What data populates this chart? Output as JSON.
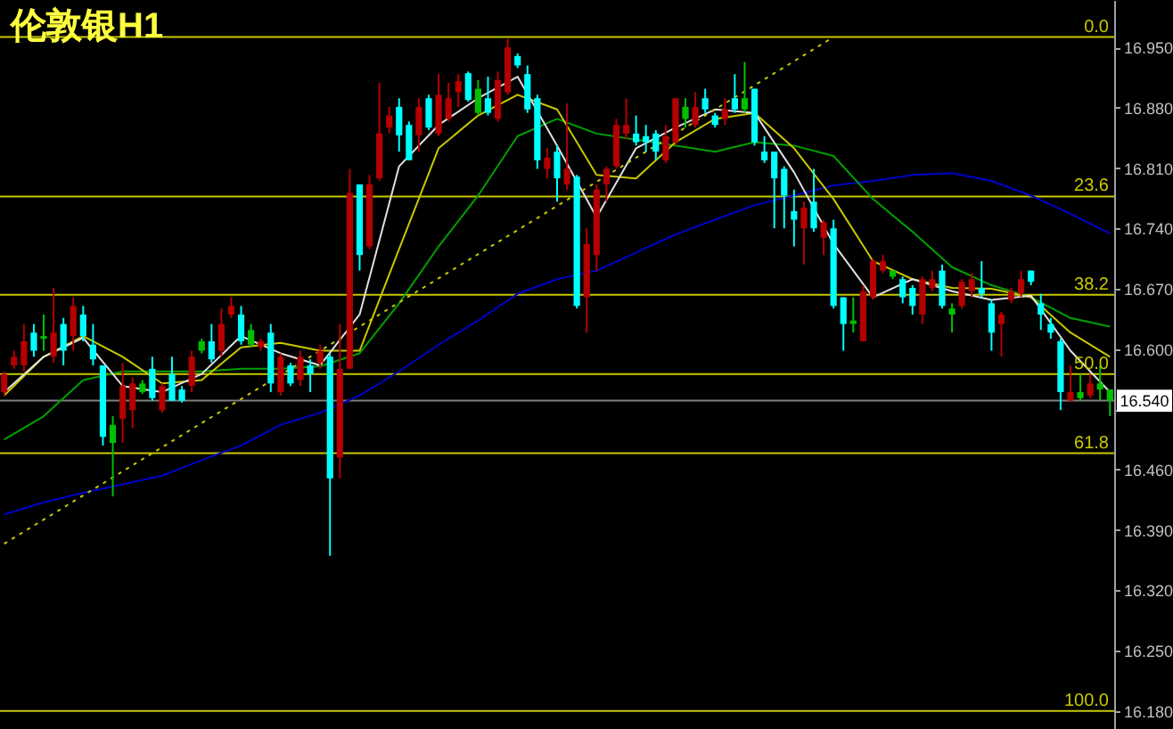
{
  "chart_data": {
    "type": "candlestick",
    "title": "伦敦银H1",
    "categories": [
      null,
      null,
      null,
      null,
      null,
      null,
      null,
      null,
      null,
      null,
      null,
      null,
      null,
      null,
      null,
      null,
      null,
      null,
      null,
      null,
      null,
      null,
      null,
      null,
      null,
      null,
      null,
      null,
      null,
      null,
      null,
      null,
      null,
      null,
      null,
      null,
      null,
      null,
      null,
      null,
      null,
      null,
      null,
      null,
      null,
      null,
      null,
      null,
      null,
      null,
      null,
      null,
      null,
      null,
      null,
      null,
      null,
      null,
      null,
      null,
      null,
      null,
      null,
      null,
      null,
      null,
      null,
      null,
      null,
      null,
      null,
      null,
      null,
      null,
      null,
      null,
      null,
      null,
      null,
      null,
      null,
      null,
      null,
      null,
      null,
      null,
      null,
      null,
      null,
      null,
      null,
      null,
      null,
      null,
      null,
      null,
      null,
      null,
      null,
      null,
      null,
      null,
      null,
      null,
      null,
      null,
      null,
      null,
      null,
      null,
      null,
      null,
      null
    ],
    "ohlc": [
      [
        16.55,
        16.574,
        16.546,
        16.571
      ],
      [
        16.581,
        16.598,
        16.577,
        16.591
      ],
      [
        16.581,
        16.629,
        16.574,
        16.609
      ],
      [
        16.619,
        16.629,
        16.591,
        16.598
      ],
      [
        16.612,
        16.64,
        16.598,
        16.615
      ],
      [
        16.591,
        16.671,
        16.584,
        16.619
      ],
      [
        16.629,
        16.636,
        16.581,
        16.598
      ],
      [
        16.615,
        16.66,
        16.598,
        16.65
      ],
      [
        16.64,
        16.65,
        16.609,
        16.615
      ],
      [
        16.605,
        16.629,
        16.581,
        16.588
      ],
      [
        16.581,
        16.581,
        16.488,
        16.498
      ],
      [
        16.491,
        16.522,
        16.429,
        16.512
      ],
      [
        16.519,
        16.584,
        16.491,
        16.557
      ],
      [
        16.529,
        16.567,
        16.508,
        16.56
      ],
      [
        16.55,
        16.564,
        16.548,
        16.56
      ],
      [
        16.577,
        16.591,
        16.54,
        16.543
      ],
      [
        16.529,
        16.56,
        16.526,
        16.557
      ],
      [
        16.571,
        16.591,
        16.54,
        16.54
      ],
      [
        16.553,
        16.557,
        16.538,
        16.54
      ],
      [
        16.557,
        16.598,
        16.55,
        16.591
      ],
      [
        16.598,
        16.612,
        16.595,
        16.609
      ],
      [
        16.609,
        16.629,
        16.584,
        16.588
      ],
      [
        16.598,
        16.647,
        16.591,
        16.629
      ],
      [
        16.64,
        16.66,
        16.636,
        16.65
      ],
      [
        16.64,
        16.65,
        16.605,
        16.609
      ],
      [
        16.605,
        16.629,
        16.602,
        16.622
      ],
      [
        16.602,
        16.612,
        16.598,
        16.609
      ],
      [
        16.619,
        16.629,
        16.55,
        16.56
      ],
      [
        16.55,
        16.595,
        16.546,
        16.591
      ],
      [
        16.581,
        16.584,
        16.557,
        16.56
      ],
      [
        16.564,
        16.598,
        16.557,
        16.591
      ],
      [
        16.581,
        16.588,
        16.55,
        16.571
      ],
      [
        16.584,
        16.605,
        16.577,
        16.598
      ],
      [
        16.591,
        16.595,
        16.36,
        16.45
      ],
      [
        16.474,
        16.629,
        16.45,
        16.577
      ],
      [
        16.577,
        16.809,
        16.577,
        16.781
      ],
      [
        16.791,
        16.791,
        16.691,
        16.709
      ],
      [
        16.719,
        16.802,
        16.716,
        16.791
      ],
      [
        16.798,
        16.909,
        16.795,
        16.85
      ],
      [
        16.857,
        16.881,
        16.85,
        16.871
      ],
      [
        16.881,
        16.891,
        16.829,
        16.848
      ],
      [
        16.86,
        16.864,
        16.819,
        16.819
      ],
      [
        16.848,
        16.891,
        16.829,
        16.881
      ],
      [
        16.891,
        16.895,
        16.854,
        16.857
      ],
      [
        16.85,
        16.919,
        16.847,
        16.895
      ],
      [
        16.867,
        16.909,
        16.864,
        16.891
      ],
      [
        16.898,
        16.919,
        16.881,
        16.911
      ],
      [
        16.92,
        16.922,
        16.887,
        16.889
      ],
      [
        16.874,
        16.912,
        16.871,
        16.902
      ],
      [
        16.891,
        16.916,
        16.871,
        16.874
      ],
      [
        16.867,
        16.922,
        16.864,
        16.912
      ],
      [
        16.898,
        16.96,
        16.895,
        16.95
      ],
      [
        16.94,
        16.943,
        16.926,
        16.929
      ],
      [
        16.919,
        16.929,
        16.874,
        16.878
      ],
      [
        16.891,
        16.895,
        16.809,
        16.819
      ],
      [
        16.809,
        16.833,
        16.798,
        16.822
      ],
      [
        16.829,
        16.836,
        16.771,
        16.798
      ],
      [
        16.791,
        16.885,
        16.785,
        16.809
      ],
      [
        16.8,
        16.802,
        16.647,
        16.65
      ],
      [
        16.66,
        16.74,
        16.619,
        16.722
      ],
      [
        16.709,
        16.791,
        16.691,
        16.785
      ],
      [
        16.791,
        16.812,
        16.771,
        16.809
      ],
      [
        16.812,
        16.867,
        16.809,
        16.86
      ],
      [
        16.85,
        16.891,
        16.843,
        16.86
      ],
      [
        16.85,
        16.871,
        16.836,
        16.84
      ],
      [
        16.847,
        16.86,
        16.829,
        16.84
      ],
      [
        16.85,
        16.854,
        16.819,
        16.829
      ],
      [
        16.819,
        16.86,
        16.816,
        16.847
      ],
      [
        16.84,
        16.891,
        16.836,
        16.891
      ],
      [
        16.867,
        16.891,
        16.857,
        16.881
      ],
      [
        16.86,
        16.898,
        16.857,
        16.881
      ],
      [
        16.891,
        16.902,
        16.874,
        16.878
      ],
      [
        16.871,
        16.874,
        16.857,
        16.86
      ],
      [
        16.867,
        16.891,
        16.86,
        16.878
      ],
      [
        16.891,
        16.919,
        16.874,
        16.878
      ],
      [
        16.878,
        16.933,
        16.874,
        16.891
      ],
      [
        16.902,
        16.902,
        16.836,
        16.84
      ],
      [
        16.829,
        16.847,
        16.816,
        16.819
      ],
      [
        16.829,
        16.829,
        16.74,
        16.798
      ],
      [
        16.809,
        16.812,
        16.74,
        16.778
      ],
      [
        16.76,
        16.785,
        16.719,
        16.75
      ],
      [
        16.74,
        16.771,
        16.698,
        16.764
      ],
      [
        16.771,
        16.809,
        16.736,
        16.74
      ],
      [
        16.729,
        16.75,
        16.709,
        16.747
      ],
      [
        16.74,
        16.75,
        16.647,
        16.65
      ],
      [
        16.66,
        16.66,
        16.598,
        16.629
      ],
      [
        16.629,
        16.66,
        16.619,
        16.633
      ],
      [
        16.609,
        16.674,
        16.609,
        16.667
      ],
      [
        16.66,
        16.705,
        16.657,
        16.702
      ],
      [
        16.691,
        16.709,
        16.688,
        16.702
      ],
      [
        16.684,
        16.691,
        16.681,
        16.691
      ],
      [
        16.681,
        16.684,
        16.653,
        16.66
      ],
      [
        16.671,
        16.674,
        16.64,
        16.65
      ],
      [
        16.64,
        16.684,
        16.629,
        16.681
      ],
      [
        16.671,
        16.691,
        16.667,
        16.681
      ],
      [
        16.691,
        16.698,
        16.647,
        16.65
      ],
      [
        16.64,
        16.653,
        16.619,
        16.647
      ],
      [
        16.65,
        16.681,
        16.647,
        16.678
      ],
      [
        16.667,
        16.688,
        16.66,
        16.681
      ],
      [
        16.671,
        16.702,
        16.66,
        16.664
      ],
      [
        16.653,
        16.657,
        16.598,
        16.619
      ],
      [
        16.629,
        16.643,
        16.591,
        16.64
      ],
      [
        16.657,
        16.671,
        16.653,
        16.667
      ],
      [
        16.664,
        16.691,
        16.66,
        16.681
      ],
      [
        16.691,
        16.691,
        16.674,
        16.678
      ],
      [
        16.653,
        16.664,
        16.622,
        16.64
      ],
      [
        16.629,
        16.636,
        16.612,
        16.619
      ],
      [
        16.609,
        16.612,
        16.529,
        16.55
      ],
      [
        16.54,
        16.581,
        16.54,
        16.55
      ],
      [
        16.543,
        16.571,
        16.54,
        16.55
      ],
      [
        16.546,
        16.571,
        16.543,
        16.56
      ],
      [
        16.553,
        16.581,
        16.54,
        16.56
      ],
      [
        16.553,
        16.553,
        16.522,
        16.54
      ]
    ],
    "colors": [
      "#b40000",
      "#b40000",
      "#b40000",
      "#00ffff",
      "#00c000",
      "#b40000",
      "#00ffff",
      "#b40000",
      "#00ffff",
      "#00ffff",
      "#00ffff",
      "#00c000",
      "#b40000",
      "#b40000",
      "#00c000",
      "#00ffff",
      "#b40000",
      "#00ffff",
      "#00ffff",
      "#b40000",
      "#00c000",
      "#00ffff",
      "#b40000",
      "#b40000",
      "#00ffff",
      "#00c000",
      "#b40000",
      "#00ffff",
      "#b40000",
      "#00ffff",
      "#b40000",
      "#00ffff",
      "#b40000",
      "#00ffff",
      "#b40000",
      "#b40000",
      "#00ffff",
      "#b40000",
      "#b40000",
      "#b40000",
      "#00ffff",
      "#00ffff",
      "#b40000",
      "#00ffff",
      "#b40000",
      "#b40000",
      "#b40000",
      "#00ffff",
      "#00c000",
      "#00ffff",
      "#b40000",
      "#b40000",
      "#00ffff",
      "#00ffff",
      "#00ffff",
      "#b40000",
      "#00ffff",
      "#b40000",
      "#00ffff",
      "#b40000",
      "#b40000",
      "#b40000",
      "#b40000",
      "#b40000",
      "#00ffff",
      "#00ffff",
      "#00ffff",
      "#b40000",
      "#b40000",
      "#00c000",
      "#b40000",
      "#00ffff",
      "#00ffff",
      "#b40000",
      "#00ffff",
      "#00c000",
      "#00ffff",
      "#00ffff",
      "#00ffff",
      "#00ffff",
      "#00ffff",
      "#b40000",
      "#00ffff",
      "#b40000",
      "#00ffff",
      "#00ffff",
      "#00c000",
      "#b40000",
      "#b40000",
      "#b40000",
      "#00c000",
      "#00ffff",
      "#00ffff",
      "#b40000",
      "#b40000",
      "#00ffff",
      "#00c000",
      "#b40000",
      "#b40000",
      "#00ffff",
      "#00ffff",
      "#b40000",
      "#b40000",
      "#b40000",
      "#00ffff",
      "#00ffff",
      "#00ffff",
      "#00ffff",
      "#b40000",
      "#00c000",
      "#b40000",
      "#00c000",
      "#00c000"
    ],
    "series": [
      {
        "type": "line",
        "color": "#0000c8",
        "values": [
          16.408,
          null,
          null,
          null,
          16.422,
          null,
          null,
          null,
          16.433,
          null,
          null,
          null,
          16.443,
          null,
          null,
          null,
          16.453,
          null,
          null,
          null,
          16.471,
          null,
          null,
          null,
          16.488,
          null,
          null,
          null,
          16.512,
          null,
          null,
          null,
          16.526,
          null,
          null,
          null,
          16.546,
          null,
          null,
          null,
          16.574,
          null,
          null,
          null,
          16.605,
          null,
          null,
          null,
          16.633,
          null,
          null,
          null,
          16.664,
          null,
          null,
          null,
          16.681,
          null,
          null,
          null,
          16.691,
          null,
          null,
          null,
          16.712,
          null,
          null,
          null,
          16.733,
          null,
          null,
          null,
          16.75,
          null,
          null,
          null,
          16.767,
          null,
          null,
          null,
          16.778,
          null,
          null,
          null,
          16.79,
          null,
          null,
          null,
          16.795,
          null,
          null,
          null,
          16.802,
          null,
          null,
          null,
          16.804,
          null,
          null,
          null,
          16.795,
          null,
          null,
          null,
          16.778,
          null,
          null,
          null,
          16.757,
          null,
          null,
          null,
          16.734
        ]
      },
      {
        "type": "line",
        "color": "#00a000",
        "values": [
          16.495,
          null,
          null,
          null,
          16.522,
          null,
          null,
          null,
          16.564,
          null,
          null,
          null,
          16.574,
          null,
          null,
          null,
          16.574,
          null,
          null,
          null,
          16.574,
          null,
          null,
          null,
          16.577,
          null,
          null,
          null,
          16.577,
          null,
          null,
          null,
          16.58,
          null,
          null,
          null,
          16.595,
          null,
          null,
          null,
          16.653,
          null,
          null,
          null,
          16.719,
          null,
          null,
          null,
          16.778,
          null,
          null,
          null,
          16.847,
          null,
          null,
          null,
          16.867,
          null,
          null,
          null,
          16.85,
          null,
          null,
          null,
          16.843,
          null,
          null,
          null,
          16.836,
          null,
          null,
          null,
          16.829,
          null,
          null,
          null,
          16.84,
          null,
          null,
          null,
          16.836,
          null,
          null,
          null,
          16.824,
          null,
          null,
          null,
          16.774,
          null,
          null,
          null,
          16.736,
          null,
          null,
          null,
          16.695,
          null,
          null,
          null,
          16.674,
          null,
          null,
          null,
          16.66,
          null,
          null,
          null,
          16.636,
          null,
          null,
          null,
          16.626
        ]
      },
      {
        "type": "line",
        "color": "#c8c800",
        "values": [
          16.546,
          null,
          null,
          null,
          16.591,
          null,
          null,
          null,
          16.615,
          null,
          null,
          null,
          16.591,
          null,
          null,
          null,
          16.56,
          null,
          null,
          null,
          16.564,
          null,
          null,
          null,
          16.602,
          null,
          null,
          null,
          16.607,
          null,
          null,
          null,
          16.598,
          null,
          null,
          null,
          16.598,
          null,
          null,
          null,
          16.716,
          null,
          null,
          null,
          16.833,
          null,
          null,
          null,
          16.871,
          null,
          null,
          null,
          16.895,
          null,
          null,
          null,
          16.878,
          null,
          null,
          null,
          16.802,
          null,
          null,
          null,
          16.798,
          null,
          null,
          null,
          16.84,
          null,
          null,
          null,
          16.867,
          null,
          null,
          null,
          16.874,
          null,
          null,
          null,
          16.833,
          null,
          null,
          null,
          16.774,
          null,
          null,
          null,
          16.702,
          null,
          null,
          null,
          16.681,
          null,
          null,
          null,
          16.671,
          null,
          null,
          null,
          16.67,
          null,
          null,
          null,
          16.66,
          null,
          null,
          null,
          16.619,
          null,
          null,
          null,
          16.591
        ]
      },
      {
        "type": "line",
        "color": "#e0e0e0",
        "values": [
          16.55,
          null,
          null,
          null,
          16.591,
          null,
          null,
          null,
          16.613,
          null,
          null,
          null,
          16.557,
          null,
          null,
          null,
          16.55,
          null,
          null,
          null,
          16.571,
          null,
          null,
          null,
          16.615,
          null,
          null,
          null,
          16.595,
          null,
          null,
          null,
          16.581,
          null,
          null,
          null,
          16.64,
          null,
          null,
          null,
          16.812,
          null,
          null,
          null,
          16.86,
          null,
          null,
          null,
          16.891,
          null,
          null,
          null,
          16.916,
          null,
          null,
          null,
          16.836,
          null,
          null,
          null,
          16.753,
          null,
          null,
          null,
          16.833,
          null,
          null,
          null,
          16.857,
          null,
          null,
          null,
          16.878,
          null,
          null,
          null,
          16.874,
          null,
          null,
          null,
          16.805,
          null,
          null,
          null,
          16.722,
          null,
          null,
          null,
          16.66,
          null,
          null,
          null,
          16.681,
          null,
          null,
          null,
          16.667,
          null,
          null,
          null,
          16.657,
          null,
          null,
          null,
          16.662,
          null,
          null,
          null,
          16.598,
          null,
          null,
          null,
          16.55
        ]
      },
      {
        "type": "line",
        "color": "#c8c800",
        "line_style": "dotted",
        "values": [
          16.374,
          null,
          null,
          null,
          null,
          null,
          null,
          null,
          null,
          null,
          null,
          null,
          null,
          null,
          null,
          null,
          null,
          null,
          null,
          null,
          null,
          null,
          null,
          null,
          null,
          null,
          null,
          null,
          null,
          null,
          null,
          null,
          null,
          null,
          null,
          null,
          null,
          null,
          null,
          null,
          null,
          null,
          null,
          null,
          null,
          null,
          null,
          null,
          null,
          null,
          null,
          null,
          null,
          null,
          null,
          null,
          null,
          null,
          null,
          null,
          null,
          null,
          null,
          null,
          null,
          null,
          null,
          null,
          null,
          null,
          null,
          null,
          null,
          null,
          null,
          null,
          null,
          null,
          null,
          null,
          null,
          null,
          null,
          null,
          16.962,
          null,
          null,
          null,
          null,
          null,
          null,
          null,
          null,
          null,
          null,
          null,
          null,
          null,
          null,
          null,
          null,
          null,
          null,
          null,
          null,
          null,
          null,
          null,
          null,
          null,
          null,
          null,
          null
        ]
      }
    ],
    "ylim": [
      16.159,
      17.005
    ],
    "yticks": [
      {
        "value": 16.95,
        "label": "16.950"
      },
      {
        "value": 16.88,
        "label": "16.880"
      },
      {
        "value": 16.81,
        "label": "16.810"
      },
      {
        "value": 16.74,
        "label": "16.740"
      },
      {
        "value": 16.67,
        "label": "16.670"
      },
      {
        "value": 16.6,
        "label": "16.600"
      },
      {
        "value": 16.53,
        "label": null
      },
      {
        "value": 16.46,
        "label": "16.460"
      },
      {
        "value": 16.39,
        "label": "16.390"
      },
      {
        "value": 16.32,
        "label": "16.320"
      },
      {
        "value": 16.25,
        "label": "16.250"
      },
      {
        "value": 16.18,
        "label": "16.180"
      }
    ],
    "tick_labels": "y",
    "annotations": [
      {
        "text": "0.0",
        "y": 16.962
      },
      {
        "text": "23.6",
        "y": 16.777
      },
      {
        "text": "38.2",
        "y": 16.663
      },
      {
        "text": "50.0",
        "y": 16.571
      },
      {
        "text": "61.8",
        "y": 16.479
      },
      {
        "text": "100.0",
        "y": 16.18
      }
    ],
    "ref_lines": [
      {
        "axis": "y",
        "value": 16.962,
        "color": "#c8c800"
      },
      {
        "axis": "y",
        "value": 16.777,
        "color": "#c8c800"
      },
      {
        "axis": "y",
        "value": 16.663,
        "color": "#c8c800"
      },
      {
        "axis": "y",
        "value": 16.571,
        "color": "#c8c800"
      },
      {
        "axis": "y",
        "value": 16.479,
        "color": "#c8c800"
      },
      {
        "axis": "y",
        "value": 16.18,
        "color": "#c8c800"
      },
      {
        "axis": "y",
        "value": 16.54,
        "label": "16.540",
        "color": "#808080"
      }
    ]
  }
}
